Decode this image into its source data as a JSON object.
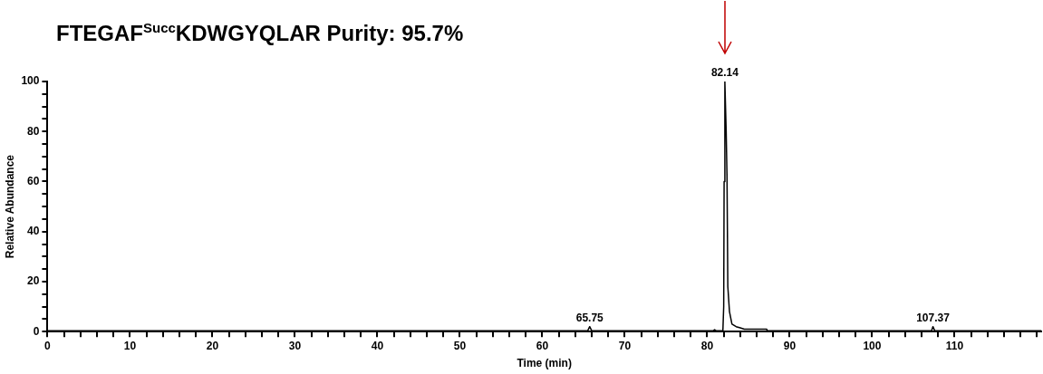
{
  "chart_data": {
    "type": "line",
    "title": "FTEGAF$^{Succ}$KDWGYQLAR  Purity: 95.7%",
    "xlabel": "Time (min)",
    "ylabel": "Relative Abundance",
    "x": [
      0,
      65.5,
      65.75,
      66,
      80.7,
      80.9,
      81.1,
      81.9,
      82.0,
      82.05,
      82.14,
      82.3,
      82.4,
      82.5,
      82.7,
      83,
      83.5,
      84,
      84.5,
      87.2,
      87.3,
      107.2,
      107.37,
      107.6,
      120.5
    ],
    "values": [
      0.3,
      0.3,
      2,
      0.3,
      0.3,
      0.8,
      0.3,
      0.3,
      10,
      60,
      100,
      80,
      62,
      18,
      8,
      3,
      2,
      1.5,
      1,
      1,
      0.3,
      0.3,
      2,
      0.3,
      0.3
    ],
    "color": "#000000",
    "marker": "none",
    "line_style": "solid",
    "grid": false,
    "legend": false,
    "xlim": [
      0,
      120.5
    ],
    "ylim": [
      0,
      100
    ],
    "xticks": [
      0,
      {
        "value": 2,
        "label": null
      },
      {
        "value": 4,
        "label": null
      },
      {
        "value": 6,
        "label": null
      },
      {
        "value": 8,
        "label": null
      },
      10,
      {
        "value": 12,
        "label": null
      },
      {
        "value": 14,
        "label": null
      },
      {
        "value": 16,
        "label": null
      },
      {
        "value": 18,
        "label": null
      },
      20,
      {
        "value": 22,
        "label": null
      },
      {
        "value": 24,
        "label": null
      },
      {
        "value": 26,
        "label": null
      },
      {
        "value": 28,
        "label": null
      },
      30,
      {
        "value": 32,
        "label": null
      },
      {
        "value": 34,
        "label": null
      },
      {
        "value": 36,
        "label": null
      },
      {
        "value": 38,
        "label": null
      },
      40,
      {
        "value": 42,
        "label": null
      },
      {
        "value": 44,
        "label": null
      },
      {
        "value": 46,
        "label": null
      },
      {
        "value": 48,
        "label": null
      },
      50,
      {
        "value": 52,
        "label": null
      },
      {
        "value": 54,
        "label": null
      },
      {
        "value": 56,
        "label": null
      },
      {
        "value": 58,
        "label": null
      },
      60,
      {
        "value": 62,
        "label": null
      },
      {
        "value": 64,
        "label": null
      },
      {
        "value": 66,
        "label": null
      },
      {
        "value": 68,
        "label": null
      },
      70,
      {
        "value": 72,
        "label": null
      },
      {
        "value": 74,
        "label": null
      },
      {
        "value": 76,
        "label": null
      },
      {
        "value": 78,
        "label": null
      },
      80,
      {
        "value": 82,
        "label": null
      },
      {
        "value": 84,
        "label": null
      },
      {
        "value": 86,
        "label": null
      },
      {
        "value": 88,
        "label": null
      },
      90,
      {
        "value": 92,
        "label": null
      },
      {
        "value": 94,
        "label": null
      },
      {
        "value": 96,
        "label": null
      },
      {
        "value": 98,
        "label": null
      },
      100,
      {
        "value": 102,
        "label": null
      },
      {
        "value": 104,
        "label": null
      },
      {
        "value": 106,
        "label": null
      },
      {
        "value": 108,
        "label": null
      },
      110,
      {
        "value": 112,
        "label": null
      },
      {
        "value": 114,
        "label": null
      },
      {
        "value": 116,
        "label": null
      },
      {
        "value": 118,
        "label": null
      },
      {
        "value": 120,
        "label": null
      }
    ],
    "yticks": [
      0,
      {
        "value": 5,
        "label": null
      },
      {
        "value": 10,
        "label": null
      },
      {
        "value": 15,
        "label": null
      },
      20,
      {
        "value": 25,
        "label": null
      },
      {
        "value": 30,
        "label": null
      },
      {
        "value": 35,
        "label": null
      },
      40,
      {
        "value": 45,
        "label": null
      },
      {
        "value": 50,
        "label": null
      },
      {
        "value": 55,
        "label": null
      },
      60,
      {
        "value": 65,
        "label": null
      },
      {
        "value": 70,
        "label": null
      },
      {
        "value": 75,
        "label": null
      },
      80,
      {
        "value": 85,
        "label": null
      },
      {
        "value": 90,
        "label": null
      },
      {
        "value": 95,
        "label": null
      },
      100
    ],
    "annotations": [
      {
        "text": "82.14",
        "x": 82.14,
        "y": 100
      },
      {
        "text": "65.75",
        "x": 65.75,
        "y": 2
      },
      {
        "text": "107.37",
        "x": 107.37,
        "y": 2
      }
    ]
  }
}
